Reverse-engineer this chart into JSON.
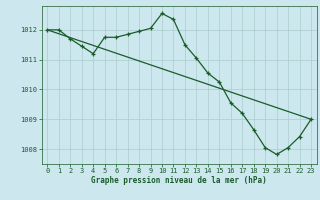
{
  "title": "Graphe pression niveau de la mer (hPa)",
  "bg_color": "#cce8ee",
  "grid_color": "#aacccc",
  "line_color": "#1a5c2a",
  "series1": {
    "x": [
      0,
      1,
      2,
      3,
      4,
      5,
      6,
      7,
      8,
      9,
      10,
      11,
      12,
      13,
      14,
      15,
      16,
      17,
      18,
      19,
      20,
      21,
      22,
      23
    ],
    "y": [
      1012.0,
      1012.0,
      1011.7,
      1011.45,
      1011.2,
      1011.75,
      1011.75,
      1011.85,
      1011.95,
      1012.05,
      1012.55,
      1012.35,
      1011.5,
      1011.05,
      1010.55,
      1010.25,
      1009.55,
      1009.2,
      1008.65,
      1008.05,
      1007.82,
      1008.05,
      1008.42,
      1009.0
    ]
  },
  "series2": {
    "x": [
      0,
      23
    ],
    "y": [
      1012.0,
      1009.0
    ]
  },
  "xlim": [
    -0.5,
    23.5
  ],
  "ylim": [
    1007.5,
    1012.8
  ],
  "yticks": [
    1008,
    1009,
    1010,
    1011,
    1012
  ],
  "xticks": [
    0,
    1,
    2,
    3,
    4,
    5,
    6,
    7,
    8,
    9,
    10,
    11,
    12,
    13,
    14,
    15,
    16,
    17,
    18,
    19,
    20,
    21,
    22,
    23
  ]
}
